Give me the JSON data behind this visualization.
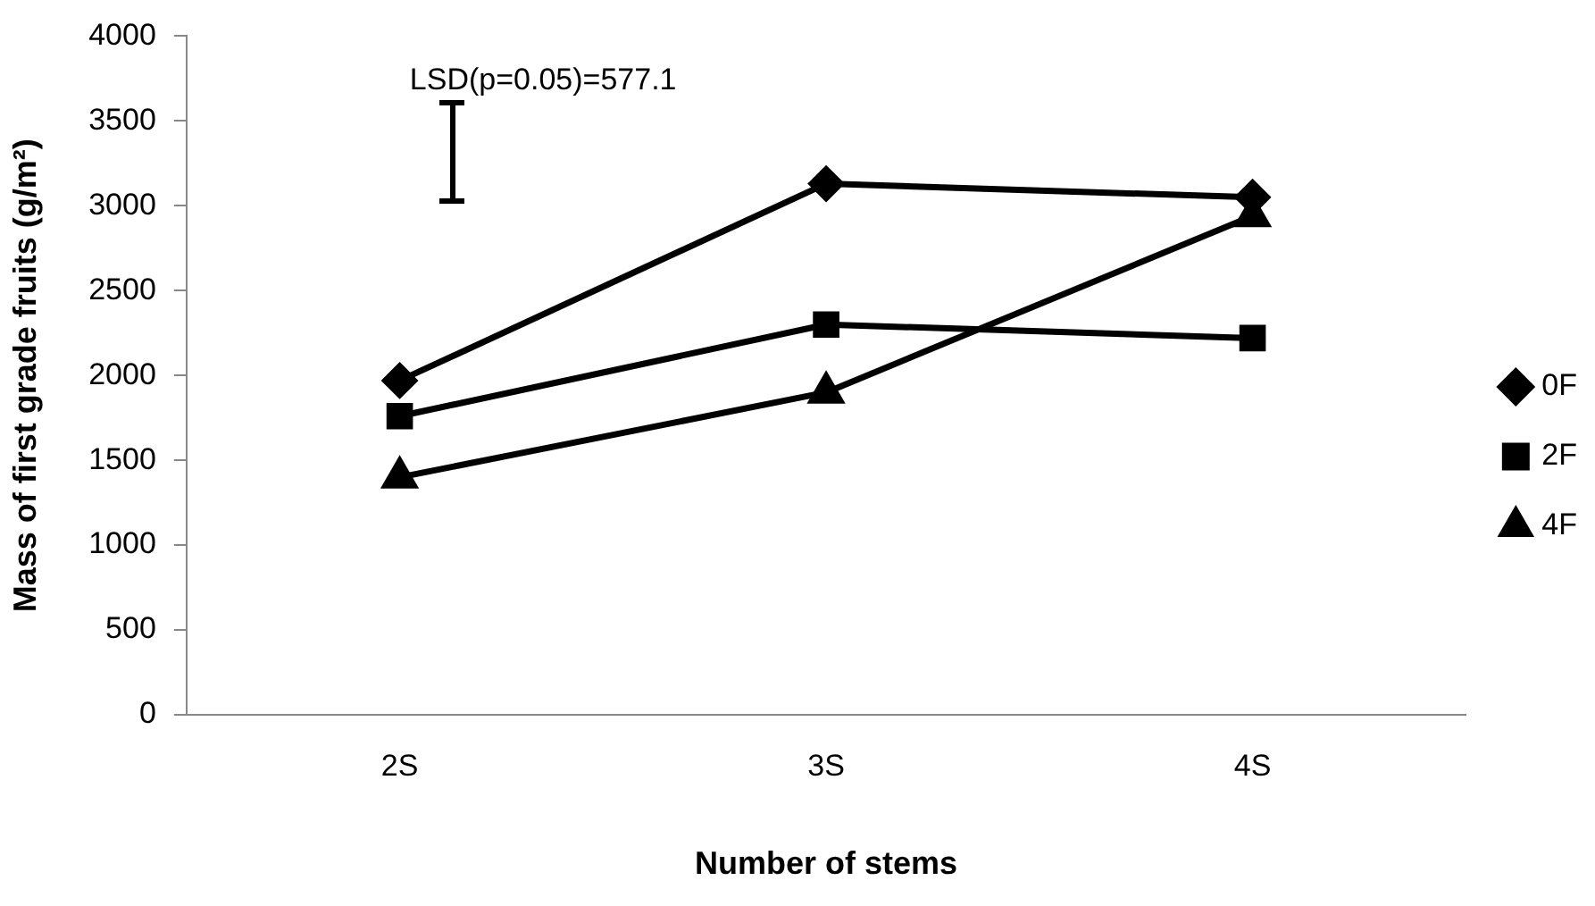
{
  "chart_data": {
    "type": "line",
    "xlabel": "Number of stems",
    "ylabel": "Mass of first grade fruits (g/m²)",
    "categories": [
      "2S",
      "3S",
      "4S"
    ],
    "series": [
      {
        "name": "0F",
        "color": "#000000",
        "marker": "diamond",
        "values": [
          1970,
          3130,
          3050
        ]
      },
      {
        "name": "2F",
        "color": "#000000",
        "marker": "square",
        "values": [
          1760,
          2300,
          2220
        ]
      },
      {
        "name": "4F",
        "color": "#000000",
        "marker": "triangle",
        "values": [
          1400,
          1900,
          2940
        ]
      }
    ],
    "ylim": [
      0,
      4000
    ],
    "yticks": [
      0,
      500,
      1000,
      1500,
      2000,
      2500,
      3000,
      3500,
      4000
    ],
    "grid": false,
    "legend": "right",
    "line_style": "solid",
    "annotations": [
      "LSD(p=0.05)=577.1"
    ]
  }
}
